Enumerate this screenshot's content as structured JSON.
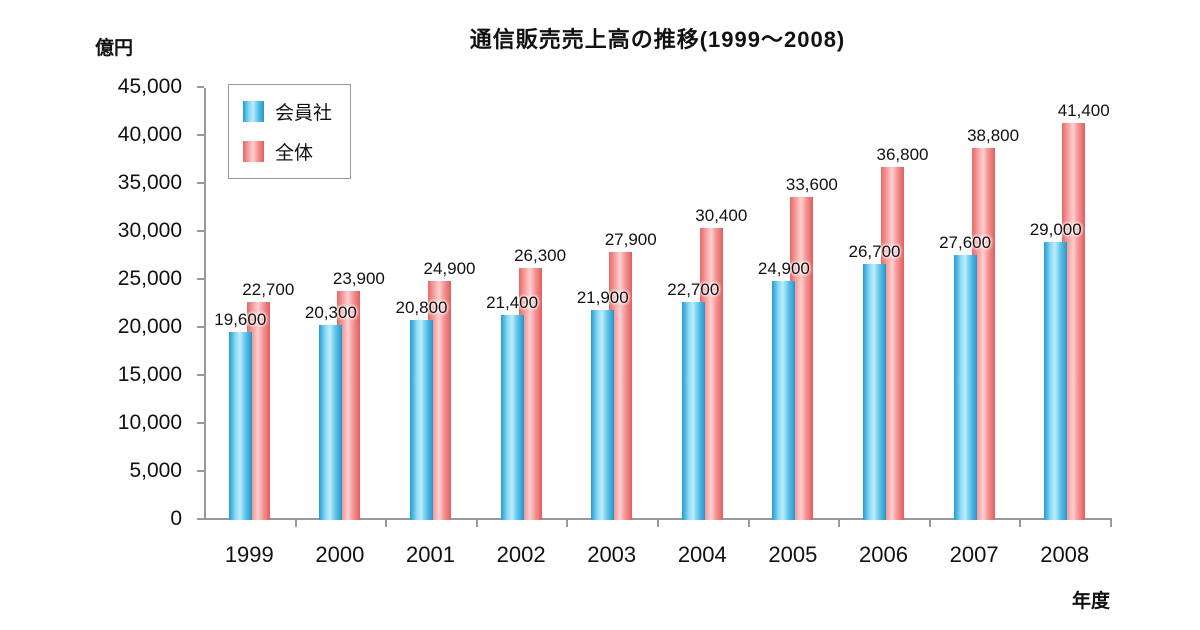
{
  "chart_data": {
    "type": "bar",
    "title": "通信販売売上高の推移(1999〜2008)",
    "y_unit_label": "億円",
    "x_axis_label": "年度",
    "categories": [
      "1999",
      "2000",
      "2001",
      "2002",
      "2003",
      "2004",
      "2005",
      "2006",
      "2007",
      "2008"
    ],
    "series": [
      {
        "name": "会員社",
        "color": "#3fb0e2",
        "values": [
          19600,
          20300,
          20800,
          21400,
          21900,
          22700,
          24900,
          26700,
          27600,
          29000
        ]
      },
      {
        "name": "全体",
        "color": "#f07e7e",
        "values": [
          22700,
          23900,
          24900,
          26300,
          27900,
          30400,
          33600,
          36800,
          38800,
          41400
        ]
      }
    ],
    "ylim": [
      0,
      45000
    ],
    "ytick_step": 5000,
    "ytick_labels": [
      "0",
      "5,000",
      "10,000",
      "15,000",
      "20,000",
      "25,000",
      "30,000",
      "35,000",
      "40,000",
      "45,000"
    ],
    "legend_position": "top-left",
    "grid": false,
    "axis_color": "#999999",
    "background_color": "#ffffff"
  }
}
